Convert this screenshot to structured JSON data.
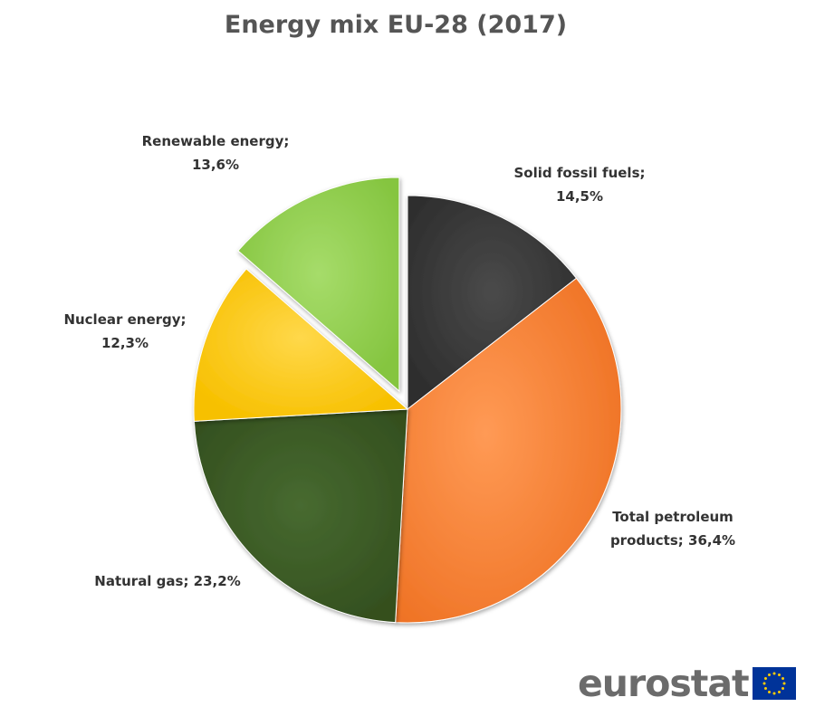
{
  "title": "Energy mix EU-28 (2017)",
  "logo_text": "eurostat",
  "chart_data": {
    "type": "pie",
    "title": "Energy mix EU-28 (2017)",
    "unit": "%",
    "slices": [
      {
        "name": "Solid fossil fuels",
        "value": 14.5,
        "color": "#3d3d3d",
        "label_line1": "Solid fossil fuels;",
        "label_line2": "14,5%",
        "exploded": false
      },
      {
        "name": "Total petroleum products",
        "value": 36.4,
        "color": "#f6843a",
        "label_line1": "Total petroleum",
        "label_line2": "products; 36,4%",
        "exploded": false
      },
      {
        "name": "Natural gas",
        "value": 23.2,
        "color": "#3f5e2a",
        "label_line1": "Natural gas;  23,2%",
        "label_line2": "",
        "exploded": false
      },
      {
        "name": "Nuclear energy",
        "value": 12.3,
        "color": "#ffd11a",
        "label_line1": "Nuclear energy;",
        "label_line2": "12,3%",
        "exploded": false
      },
      {
        "name": "Renewable energy",
        "value": 13.6,
        "color": "#92d050",
        "label_line1": "Renewable energy;",
        "label_line2": "13,6%",
        "exploded": true
      }
    ]
  }
}
